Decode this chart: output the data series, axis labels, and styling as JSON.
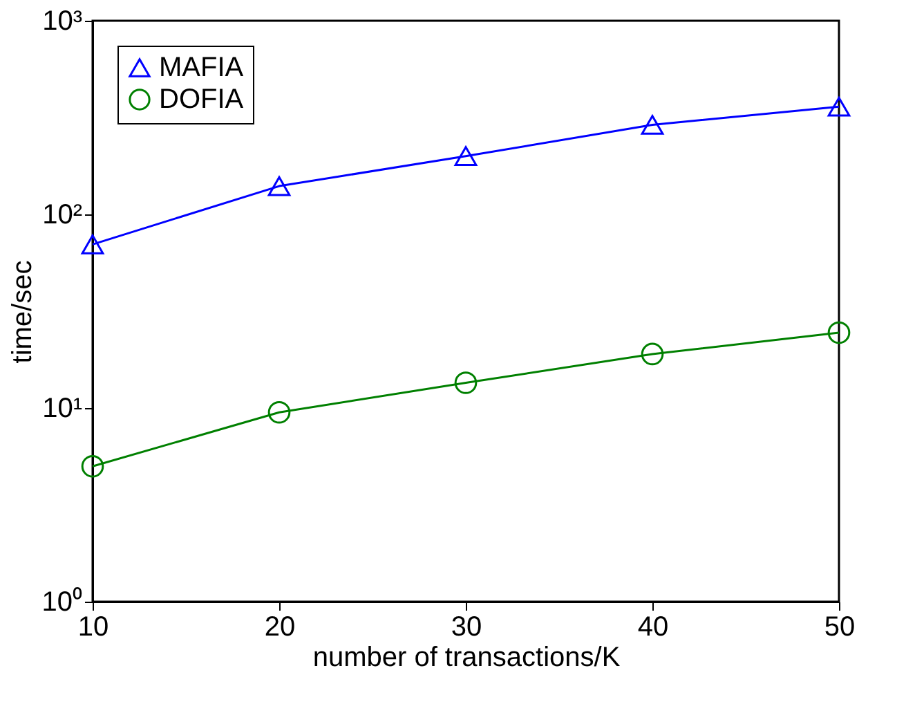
{
  "chart_data": {
    "type": "line",
    "xlabel": "number of transactions/K",
    "ylabel": "time/sec",
    "x": [
      10,
      20,
      30,
      40,
      50
    ],
    "series": [
      {
        "name": "MAFIA",
        "color": "#0000ff",
        "marker": "triangle",
        "values": [
          70,
          140,
          200,
          290,
          360
        ]
      },
      {
        "name": "DOFIA",
        "color": "#008000",
        "marker": "circle",
        "values": [
          5,
          9.5,
          13.5,
          19,
          24.5
        ]
      }
    ],
    "xlim": [
      10,
      50
    ],
    "xticks": [
      10,
      20,
      30,
      40,
      50
    ],
    "ylim": [
      1,
      1000
    ],
    "yticks": [
      {
        "value": 1,
        "label": "10⁰"
      },
      {
        "value": 10,
        "label": "10¹"
      },
      {
        "value": 100,
        "label": "10²"
      },
      {
        "value": 1000,
        "label": "10³"
      }
    ],
    "log": "y",
    "grid": false,
    "legend": "top left",
    "line_style": "solid"
  }
}
